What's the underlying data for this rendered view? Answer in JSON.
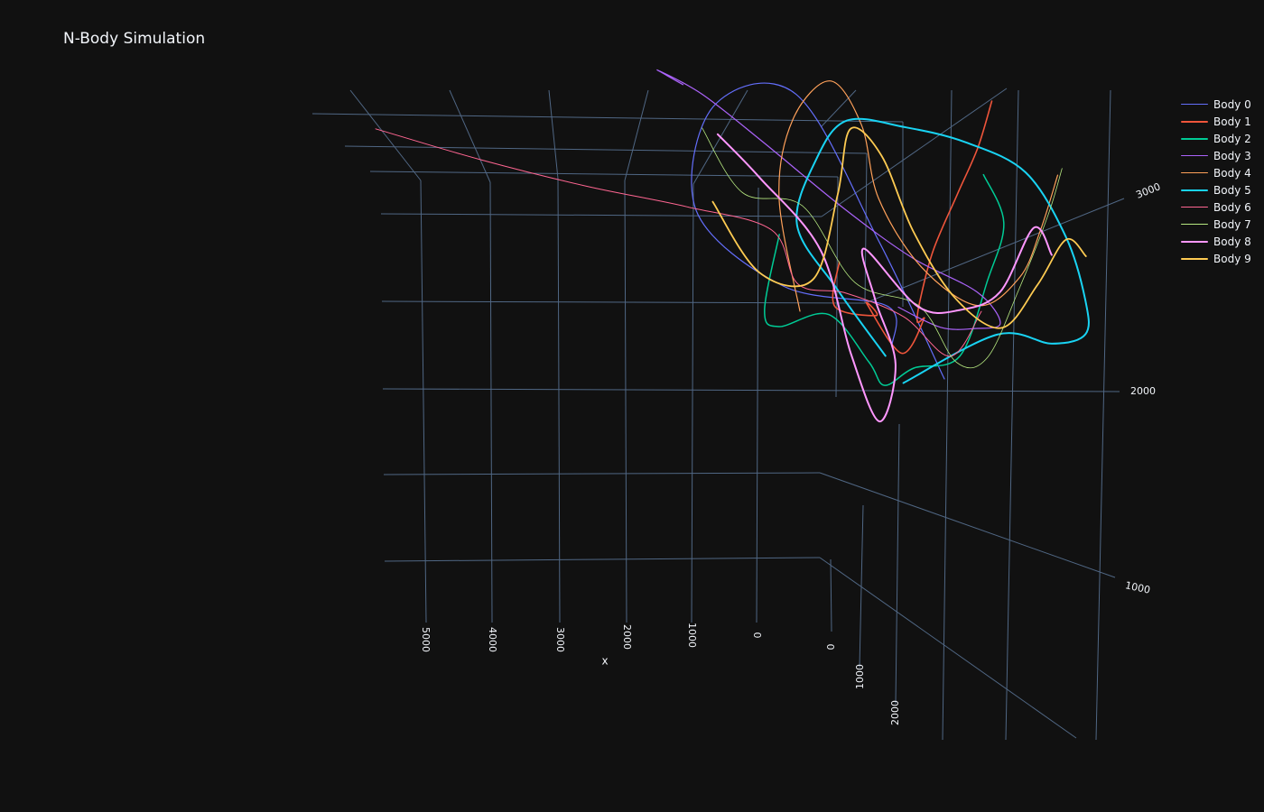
{
  "title": "N-Body Simulation",
  "colors": {
    "background": "#111111",
    "grid": "#506784",
    "text": "#f2f5fa"
  },
  "chart_data": {
    "type": "line3d",
    "title": "N-Body Simulation",
    "legend_position": "top-right",
    "grid": true,
    "axes": {
      "x": {
        "title": "x",
        "ticks": [
          "5000",
          "4000",
          "3000",
          "2000",
          "1000",
          "0"
        ]
      },
      "y": {
        "title": "",
        "ticks": [
          "0",
          "1000",
          "2000"
        ]
      },
      "z": {
        "title": "",
        "ticks": [
          "1000",
          "2000",
          "3000"
        ]
      }
    },
    "series": [
      {
        "name": "Body 0",
        "color": "#636efa",
        "width": 1.2,
        "points": [
          [
            1800,
            3200,
            3400
          ],
          [
            1200,
            2500,
            3000
          ],
          [
            2000,
            1800,
            2400
          ],
          [
            2600,
            900,
            2200
          ],
          [
            2300,
            400,
            2800
          ],
          [
            1500,
            700,
            3300
          ],
          [
            800,
            1800,
            2900
          ],
          [
            300,
            2800,
            2500
          ]
        ]
      },
      {
        "name": "Body 1",
        "color": "#ef553b",
        "width": 1.6,
        "points": [
          [
            900,
            1500,
            2300
          ],
          [
            1100,
            1800,
            2150
          ],
          [
            800,
            2100,
            2400
          ],
          [
            500,
            1700,
            2050
          ],
          [
            200,
            2100,
            1950
          ],
          [
            -200,
            1900,
            2100
          ],
          [
            -500,
            1600,
            1700
          ],
          [
            -800,
            1300,
            1600
          ],
          [
            -1100,
            1000,
            1800
          ],
          [
            -1400,
            800,
            2200
          ],
          [
            -1700,
            600,
            2500
          ],
          [
            -1900,
            400,
            2800
          ]
        ]
      },
      {
        "name": "Body 2",
        "color": "#00cc96",
        "width": 1.5,
        "points": [
          [
            1200,
            900,
            1900
          ],
          [
            1500,
            1300,
            1500
          ],
          [
            1700,
            1700,
            1800
          ],
          [
            1400,
            2000,
            2300
          ],
          [
            900,
            2300,
            2100
          ],
          [
            400,
            2200,
            1700
          ],
          [
            -200,
            2000,
            1650
          ],
          [
            -700,
            2100,
            1900
          ],
          [
            -1200,
            1700,
            2300
          ],
          [
            -1500,
            1400,
            2600
          ],
          [
            -1300,
            1100,
            2800
          ]
        ]
      },
      {
        "name": "Body 3",
        "color": "#ab63fa",
        "width": 1.2,
        "points": [
          [
            2500,
            100,
            2700
          ],
          [
            3100,
            200,
            3000
          ],
          [
            2800,
            600,
            3200
          ],
          [
            2000,
            900,
            3000
          ],
          [
            1000,
            1400,
            2800
          ],
          [
            200,
            1800,
            2700
          ],
          [
            -600,
            2100,
            2650
          ],
          [
            -1000,
            2200,
            2400
          ],
          [
            -900,
            2000,
            2100
          ],
          [
            -500,
            1900,
            2000
          ],
          [
            0,
            1700,
            2000
          ]
        ]
      },
      {
        "name": "Body 4",
        "color": "#ffa15a",
        "width": 1.2,
        "points": [
          [
            1600,
            1800,
            2100
          ],
          [
            1800,
            1200,
            2700
          ],
          [
            1400,
            700,
            3000
          ],
          [
            800,
            500,
            3200
          ],
          [
            200,
            600,
            2800
          ],
          [
            -100,
            900,
            2300
          ],
          [
            -500,
            1400,
            2100
          ],
          [
            -1200,
            1700,
            2000
          ],
          [
            -1800,
            1600,
            2200
          ],
          [
            -2100,
            1400,
            2500
          ],
          [
            -2300,
            1200,
            2900
          ]
        ]
      },
      {
        "name": "Body 5",
        "color": "#19d3f3",
        "width": 2.0,
        "points": [
          [
            300,
            2000,
            1800
          ],
          [
            900,
            1600,
            2100
          ],
          [
            1500,
            1300,
            2500
          ],
          [
            1200,
            1000,
            2900
          ],
          [
            700,
            800,
            3100
          ],
          [
            300,
            1200,
            3500
          ],
          [
            -200,
            1600,
            3800
          ],
          [
            -900,
            1900,
            3800
          ],
          [
            -1500,
            2200,
            3400
          ],
          [
            -1900,
            2400,
            2900
          ],
          [
            -2100,
            2400,
            2500
          ],
          [
            -1900,
            2200,
            2150
          ],
          [
            -1400,
            1900,
            1900
          ],
          [
            0,
            2100,
            1600
          ]
        ]
      },
      {
        "name": "Body 6",
        "color": "#ff6692",
        "width": 1.0,
        "points": [
          [
            5500,
            -1000,
            900
          ],
          [
            4500,
            -400,
            1250
          ],
          [
            3500,
            200,
            1650
          ],
          [
            2500,
            700,
            2000
          ],
          [
            1600,
            1100,
            2200
          ],
          [
            1400,
            1500,
            2050
          ],
          [
            1000,
            1800,
            2300
          ],
          [
            500,
            2200,
            2500
          ],
          [
            -300,
            2300,
            2150
          ],
          [
            -900,
            2000,
            2300
          ]
        ]
      },
      {
        "name": "Body 7",
        "color": "#b6e880",
        "width": 0.8,
        "points": [
          [
            2600,
            600,
            2800
          ],
          [
            2000,
            900,
            2400
          ],
          [
            1400,
            1200,
            2600
          ],
          [
            800,
            1700,
            2300
          ],
          [
            200,
            2100,
            2500
          ],
          [
            -300,
            2400,
            2200
          ],
          [
            -1000,
            2200,
            2000
          ],
          [
            -1600,
            1800,
            2300
          ],
          [
            -2000,
            1500,
            2800
          ],
          [
            -2200,
            1300,
            3100
          ]
        ]
      },
      {
        "name": "Body 8",
        "color": "#ff97ff",
        "width": 2.0,
        "points": [
          [
            2200,
            500,
            2600
          ],
          [
            1700,
            800,
            2450
          ],
          [
            1000,
            1300,
            2200
          ],
          [
            700,
            1900,
            1700
          ],
          [
            400,
            2300,
            1400
          ],
          [
            100,
            2000,
            1700
          ],
          [
            400,
            1700,
            2100
          ],
          [
            600,
            1500,
            2450
          ],
          [
            -300,
            1700,
            2000
          ],
          [
            -700,
            1900,
            2200
          ],
          [
            -1200,
            1900,
            2400
          ],
          [
            -1600,
            1700,
            2900
          ],
          [
            -1900,
            1800,
            2700
          ]
        ]
      },
      {
        "name": "Body 9",
        "color": "#fecb52",
        "width": 1.8,
        "points": [
          [
            2400,
            900,
            2300
          ],
          [
            1800,
            1300,
            1950
          ],
          [
            1200,
            1500,
            2100
          ],
          [
            800,
            1100,
            2600
          ],
          [
            600,
            800,
            3000
          ],
          [
            100,
            900,
            2800
          ],
          [
            -300,
            1300,
            2400
          ],
          [
            -800,
            1700,
            2100
          ],
          [
            -1300,
            2000,
            2100
          ],
          [
            -1600,
            2000,
            2600
          ],
          [
            -1900,
            1900,
            3000
          ],
          [
            -2300,
            1900,
            2800
          ]
        ]
      }
    ]
  }
}
